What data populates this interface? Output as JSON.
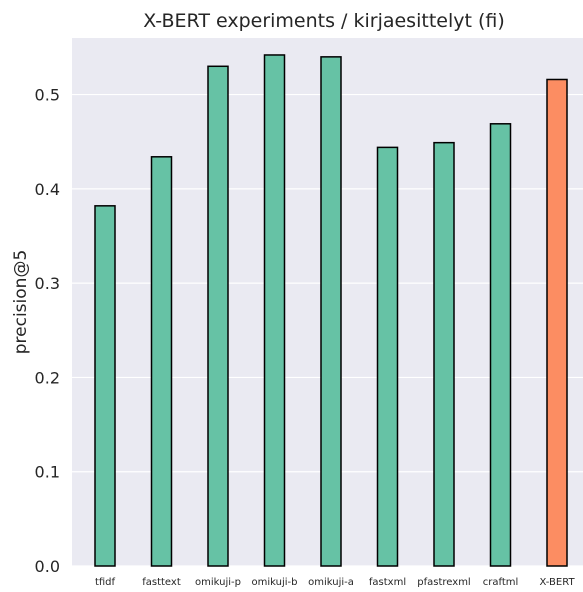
{
  "chart_data": {
    "type": "bar",
    "title": "X-BERT experiments / kirjaesittelyt (fi)",
    "xlabel": "",
    "ylabel": "precision@5",
    "ylim": [
      0,
      0.56
    ],
    "yticks": [
      "0.0",
      "0.1",
      "0.2",
      "0.3",
      "0.4",
      "0.5"
    ],
    "grid": true,
    "categories": [
      "tfidf",
      "fasttext",
      "omikuji-p",
      "omikuji-b",
      "omikuji-a",
      "fastxml",
      "pfastrexml",
      "craftml",
      "X-BERT"
    ],
    "values": [
      0.382,
      0.434,
      0.53,
      0.542,
      0.54,
      0.444,
      0.449,
      0.469,
      0.516
    ],
    "colors": [
      "#66c2a5",
      "#66c2a5",
      "#66c2a5",
      "#66c2a5",
      "#66c2a5",
      "#66c2a5",
      "#66c2a5",
      "#66c2a5",
      "#fc8d62"
    ],
    "background": "#eaeaf2",
    "grid_color": "#ffffff",
    "edge_color": "#000000"
  }
}
